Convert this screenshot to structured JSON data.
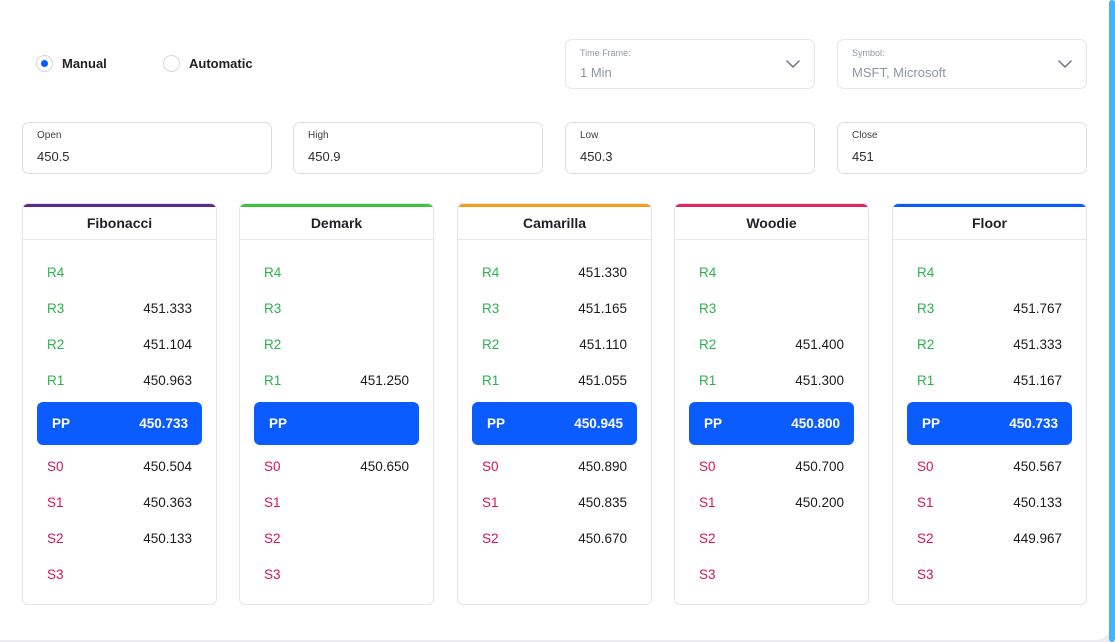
{
  "mode": {
    "options": [
      {
        "label": "Manual",
        "selected": true
      },
      {
        "label": "Automatic",
        "selected": false
      }
    ]
  },
  "selects": {
    "timeframe": {
      "caption": "Time Frame:",
      "value": "1 Min"
    },
    "symbol": {
      "caption": "Symbol:",
      "value": "MSFT, Microsoft"
    }
  },
  "inputs": {
    "open": {
      "caption": "Open",
      "value": "450.5"
    },
    "high": {
      "caption": "High",
      "value": "450.9"
    },
    "low": {
      "caption": "Low",
      "value": "450.3"
    },
    "close": {
      "caption": "Close",
      "value": "451"
    }
  },
  "colors": {
    "accent": "#0b5cff",
    "resistance": "#2bb24c",
    "support": "#d6135b"
  },
  "panels": [
    {
      "id": "fibonacci",
      "title": "Fibonacci",
      "bar_color": "#5b2b86",
      "R4": "",
      "R3": "451.333",
      "R2": "451.104",
      "R1": "450.963",
      "PP": "450.733",
      "S0": "450.504",
      "S1": "450.363",
      "S2": "450.133",
      "S3": ""
    },
    {
      "id": "demark",
      "title": "Demark",
      "bar_color": "#3fc33f",
      "R4": "",
      "R3": "",
      "R2": "",
      "R1": "451.250",
      "PP": "",
      "S0": "450.650",
      "S1": "",
      "S2": "",
      "S3": ""
    },
    {
      "id": "camarilla",
      "title": "Camarilla",
      "bar_color": "#f59e1b",
      "R4": "451.330",
      "R3": "451.165",
      "R2": "451.110",
      "R1": "451.055",
      "PP": "450.945",
      "S0": "450.890",
      "S1": "450.835",
      "S2": "450.670"
    },
    {
      "id": "woodie",
      "title": "Woodie",
      "bar_color": "#e3245f",
      "R4": "",
      "R3": "",
      "R2": "451.400",
      "R1": "451.300",
      "PP": "450.800",
      "S0": "450.700",
      "S1": "450.200",
      "S2": "",
      "S3": ""
    },
    {
      "id": "floor",
      "title": "Floor",
      "bar_color": "#0b5cff",
      "R4": "",
      "R3": "451.767",
      "R2": "451.333",
      "R1": "451.167",
      "PP": "450.733",
      "S0": "450.567",
      "S1": "450.133",
      "S2": "449.967",
      "S3": ""
    }
  ]
}
